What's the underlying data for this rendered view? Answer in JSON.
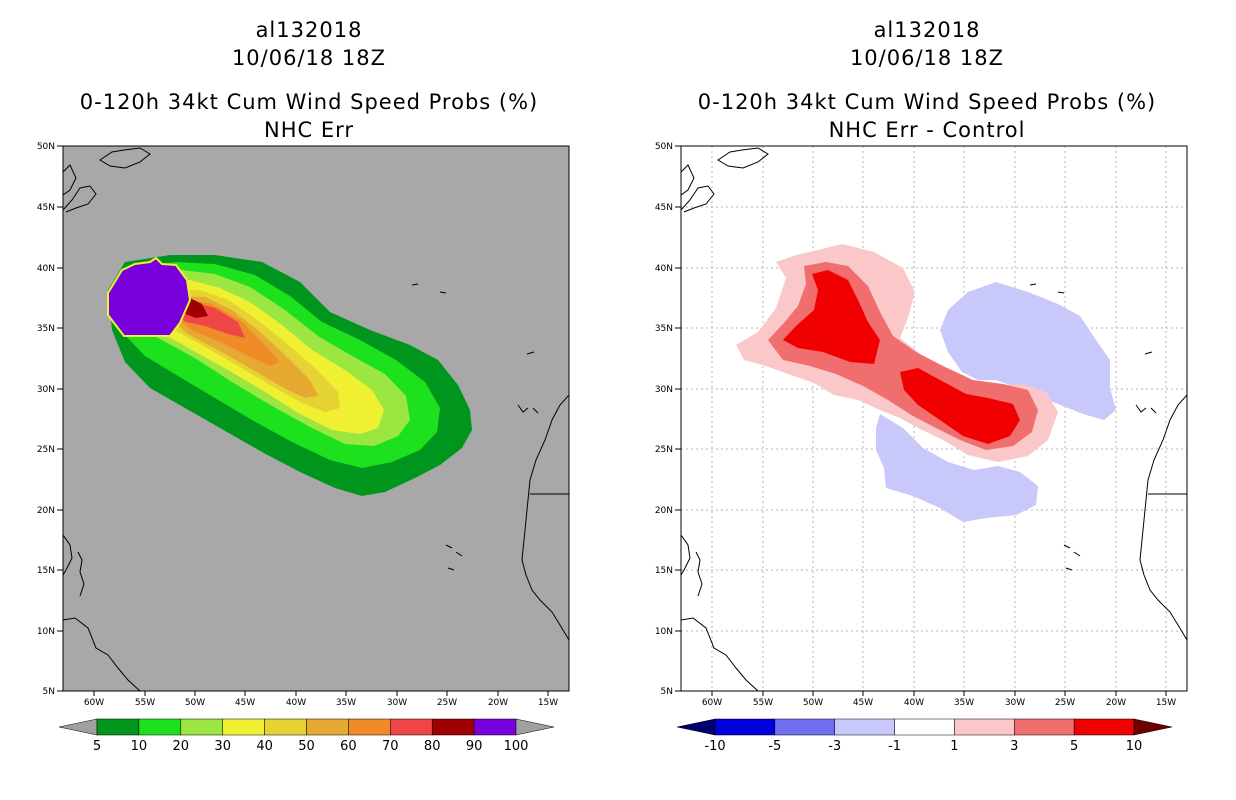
{
  "panels": [
    {
      "storm_id": "al132018",
      "datetime": "10/06/18 18Z",
      "product": "0-120h 34kt Cum Wind Speed Probs (%)",
      "subtitle": "NHC Err",
      "colorbar": {
        "labels": [
          "5",
          "10",
          "20",
          "30",
          "40",
          "50",
          "60",
          "70",
          "80",
          "90",
          "100"
        ],
        "colors": [
          "#a0a0a0",
          "#00961e",
          "#1ee11e",
          "#9be641",
          "#f0f032",
          "#e6d232",
          "#e6aa32",
          "#f08c28",
          "#f04646",
          "#a00000",
          "#7800dc",
          "#a0a0a0"
        ]
      }
    },
    {
      "storm_id": "al132018",
      "datetime": "10/06/18 18Z",
      "product": "0-120h 34kt Cum Wind Speed Probs (%)",
      "subtitle": "NHC Err - Control",
      "colorbar": {
        "labels": [
          "-10",
          "-5",
          "-3",
          "-1",
          "1",
          "3",
          "5",
          "10"
        ],
        "colors": [
          "#00006e",
          "#0000dc",
          "#6e6ef0",
          "#c8c8fa",
          "#ffffff",
          "#fac8c8",
          "#f06e6e",
          "#f00000",
          "#6e0000"
        ]
      }
    }
  ],
  "map": {
    "lat_ticks": [
      "50N",
      "45N",
      "40N",
      "35N",
      "30N",
      "25N",
      "20N",
      "15N",
      "10N",
      "5N"
    ],
    "lon_ticks": [
      "60W",
      "55W",
      "50W",
      "45W",
      "40W",
      "35W",
      "30W",
      "25W",
      "20W",
      "15W"
    ],
    "left_background": "#a8a8a8",
    "right_background": "#ffffff"
  }
}
